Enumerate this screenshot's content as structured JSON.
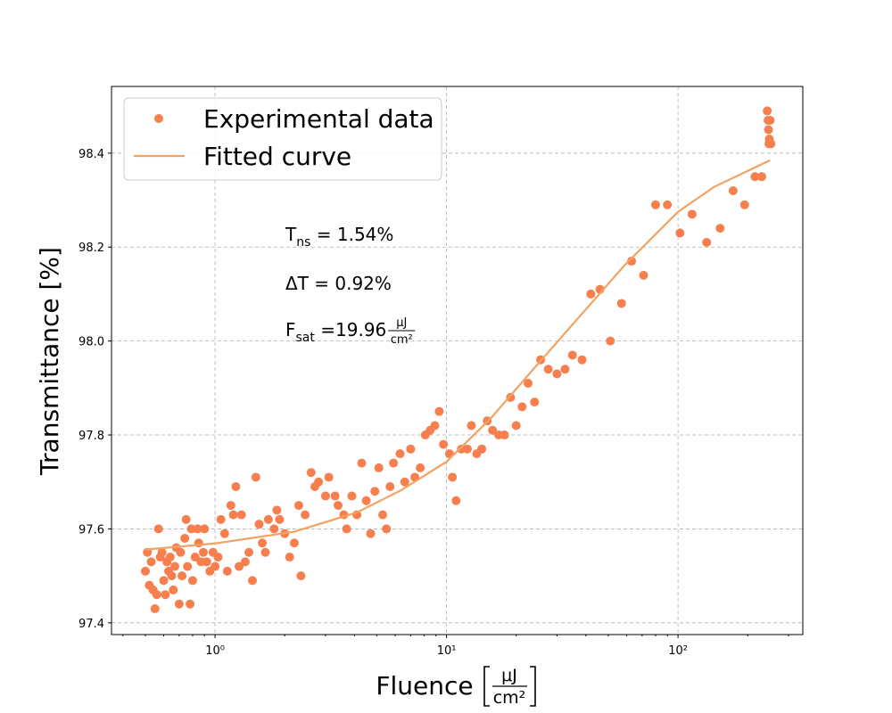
{
  "chart_data": {
    "type": "scatter",
    "xscale": "log",
    "grid": true,
    "legend": "upper left",
    "xlabel": "Fluence",
    "xlabel_unit_num": "μJ",
    "xlabel_unit_den": "cm²",
    "ylabel": "Transmittance [%]",
    "xlim": [
      0.357,
      346
    ],
    "ylim": [
      97.375,
      98.542
    ],
    "xticks": [
      {
        "value": 1,
        "label": "10⁰"
      },
      {
        "value": 10,
        "label": "10¹"
      },
      {
        "value": 100,
        "label": "10²"
      }
    ],
    "xminorticks": [
      0.4,
      0.5,
      0.6,
      0.7,
      0.8,
      0.9,
      2,
      3,
      4,
      5,
      6,
      7,
      8,
      9,
      20,
      30,
      40,
      50,
      60,
      70,
      80,
      90,
      200,
      300
    ],
    "yticks": [
      97.4,
      97.6,
      97.8,
      {
        "value": 98.0,
        "label": "98.0"
      },
      98.2,
      98.4
    ],
    "annotations": [
      {
        "main": "T",
        "sub": "ns",
        "tail": " = 1.54%"
      },
      {
        "main": "ΔT = 0.92%"
      },
      {
        "main": "F",
        "sub": "sat",
        "tail": " =19.96",
        "num": "μJ",
        "den": "cm²"
      }
    ],
    "series": [
      {
        "name": "Experimental data",
        "type": "scatter",
        "color": "#f77f4d",
        "x": [
          0.5,
          0.51,
          0.52,
          0.53,
          0.54,
          0.55,
          0.56,
          0.57,
          0.58,
          0.59,
          0.6,
          0.61,
          0.62,
          0.63,
          0.64,
          0.65,
          0.66,
          0.67,
          0.68,
          0.7,
          0.71,
          0.72,
          0.74,
          0.75,
          0.76,
          0.78,
          0.79,
          0.8,
          0.82,
          0.84,
          0.85,
          0.87,
          0.89,
          0.9,
          0.92,
          0.95,
          0.98,
          1.0,
          1.03,
          1.06,
          1.1,
          1.13,
          1.17,
          1.2,
          1.23,
          1.27,
          1.3,
          1.35,
          1.4,
          1.45,
          1.5,
          1.55,
          1.6,
          1.65,
          1.7,
          1.8,
          1.85,
          1.9,
          2.0,
          2.1,
          2.2,
          2.3,
          2.35,
          2.45,
          2.6,
          2.7,
          2.8,
          3.0,
          3.1,
          3.3,
          3.4,
          3.6,
          3.7,
          3.9,
          4.1,
          4.3,
          4.5,
          4.7,
          4.9,
          5.1,
          5.3,
          5.5,
          5.7,
          5.9,
          6.3,
          6.6,
          7.0,
          7.3,
          7.7,
          8.1,
          8.5,
          8.9,
          9.3,
          9.7,
          10.3,
          10.6,
          11.0,
          11.6,
          12.3,
          12.8,
          13.5,
          14.2,
          15.0,
          15.8,
          16.8,
          17.8,
          18.9,
          20.0,
          21.2,
          22.5,
          24.0,
          25.5,
          27.5,
          30.0,
          32.5,
          35.0,
          38.5,
          42.0,
          46.0,
          51.0,
          57.0,
          63.0,
          71.0,
          80.0,
          90.0,
          102,
          115,
          133,
          152,
          173,
          194,
          215,
          230,
          243,
          245,
          246,
          247,
          248,
          250,
          252
        ],
        "values": [
          97.51,
          97.55,
          97.48,
          97.53,
          97.47,
          97.43,
          97.46,
          97.6,
          97.54,
          97.55,
          97.49,
          97.46,
          97.53,
          97.51,
          97.54,
          97.5,
          97.47,
          97.52,
          97.56,
          97.44,
          97.55,
          97.5,
          97.58,
          97.62,
          97.52,
          97.44,
          97.6,
          97.49,
          97.54,
          97.6,
          97.57,
          97.53,
          97.55,
          97.6,
          97.53,
          97.51,
          97.55,
          97.52,
          97.54,
          97.62,
          97.59,
          97.51,
          97.65,
          97.63,
          97.69,
          97.52,
          97.63,
          97.53,
          97.55,
          97.49,
          97.71,
          97.61,
          97.57,
          97.55,
          97.62,
          97.6,
          97.64,
          97.62,
          97.59,
          97.54,
          97.57,
          97.65,
          97.5,
          97.63,
          97.72,
          97.69,
          97.7,
          97.67,
          97.71,
          97.67,
          97.65,
          97.63,
          97.6,
          97.67,
          97.63,
          97.74,
          97.66,
          97.59,
          97.68,
          97.73,
          97.63,
          97.6,
          97.69,
          97.74,
          97.76,
          97.7,
          97.77,
          97.71,
          97.73,
          97.8,
          97.81,
          97.82,
          97.85,
          97.78,
          97.76,
          97.71,
          97.66,
          97.77,
          97.77,
          97.82,
          97.76,
          97.77,
          97.83,
          97.81,
          97.8,
          97.8,
          97.88,
          97.82,
          97.86,
          97.91,
          97.87,
          97.96,
          97.94,
          97.93,
          97.94,
          97.97,
          97.96,
          98.1,
          98.11,
          98.0,
          98.08,
          98.17,
          98.14,
          98.29,
          98.29,
          98.23,
          98.27,
          98.21,
          98.24,
          98.32,
          98.29,
          98.35,
          98.35,
          98.49,
          98.47,
          98.45,
          98.42,
          98.43,
          98.47,
          98.42
        ]
      },
      {
        "name": "Fitted curve",
        "type": "line",
        "color": "#f4a261",
        "x": [
          0.5,
          1,
          2.2,
          4.1,
          6.4,
          10,
          15.5,
          24,
          37.7,
          58.7,
          100,
          143,
          250
        ],
        "values": [
          97.556,
          97.569,
          97.594,
          97.635,
          97.683,
          97.743,
          97.835,
          97.943,
          98.053,
          98.161,
          98.275,
          98.328,
          98.385
        ]
      }
    ]
  }
}
